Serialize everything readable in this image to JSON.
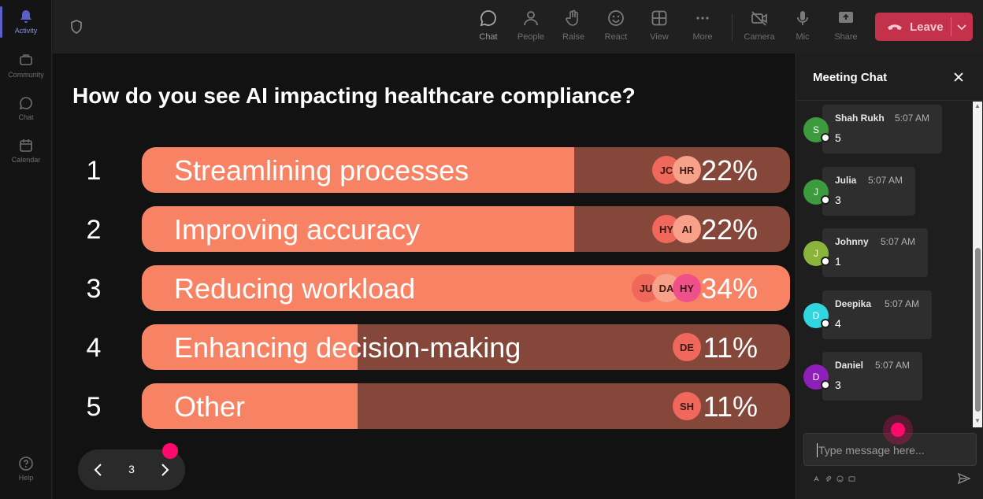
{
  "rail": {
    "items": [
      {
        "label": "Activity",
        "icon": "bell-icon",
        "active": true
      },
      {
        "label": "Community",
        "icon": "community-icon"
      },
      {
        "label": "Chat",
        "icon": "chat-bubble-icon"
      },
      {
        "label": "Calendar",
        "icon": "calendar-icon"
      },
      {
        "label": "Help",
        "icon": "help-icon"
      }
    ]
  },
  "topbar": {
    "buttons": [
      {
        "label": "Chat",
        "icon": "chat-icon",
        "active": true
      },
      {
        "label": "People",
        "icon": "people-icon"
      },
      {
        "label": "Raise",
        "icon": "raise-hand-icon"
      },
      {
        "label": "React",
        "icon": "react-smiley-icon"
      },
      {
        "label": "View",
        "icon": "view-grid-icon"
      },
      {
        "label": "More",
        "icon": "more-dots-icon"
      },
      {
        "label": "Camera",
        "icon": "camera-off-icon"
      },
      {
        "label": "Mic",
        "icon": "mic-icon"
      },
      {
        "label": "Share",
        "icon": "share-icon"
      }
    ],
    "leave_label": "Leave"
  },
  "poll": {
    "question": "How do you see AI impacting healthcare compliance?",
    "options": [
      {
        "num": "1",
        "label": "Streamlining processes",
        "percent_label": "22%",
        "fraction": 0.22,
        "voters": [
          {
            "initials": "JC",
            "color": "#f0675c"
          },
          {
            "initials": "HR",
            "color": "#f7a08a"
          }
        ]
      },
      {
        "num": "2",
        "label": "Improving accuracy",
        "percent_label": "22%",
        "fraction": 0.22,
        "voters": [
          {
            "initials": "HY",
            "color": "#f0675c"
          },
          {
            "initials": "AI",
            "color": "#f7a08a"
          }
        ]
      },
      {
        "num": "3",
        "label": "Reducing workload",
        "percent_label": "34%",
        "fraction": 0.34,
        "voters": [
          {
            "initials": "JU",
            "color": "#f0675c"
          },
          {
            "initials": "DA",
            "color": "#f7a08a"
          },
          {
            "initials": "HY",
            "color": "#f0508a"
          }
        ]
      },
      {
        "num": "4",
        "label": "Enhancing decision-making",
        "percent_label": "11%",
        "fraction": 0.11,
        "voters": [
          {
            "initials": "DE",
            "color": "#f0675c"
          }
        ]
      },
      {
        "num": "5",
        "label": "Other",
        "percent_label": "11%",
        "fraction": 0.11,
        "voters": [
          {
            "initials": "SH",
            "color": "#f0675c"
          }
        ]
      }
    ],
    "colors": {
      "fill": "#f88364",
      "track": "#85473a"
    },
    "page": "3"
  },
  "chat": {
    "title": "Meeting Chat",
    "messages": [
      {
        "name": "Shah Rukh",
        "initial": "S",
        "time": "5:07 AM",
        "text": "5",
        "avatar_color": "#3d9b3d"
      },
      {
        "name": "Julia",
        "initial": "J",
        "time": "5:07 AM",
        "text": "3",
        "avatar_color": "#3d9b3d"
      },
      {
        "name": "Johnny",
        "initial": "J",
        "time": "5:07 AM",
        "text": "1",
        "avatar_color": "#8bb33a"
      },
      {
        "name": "Deepika",
        "initial": "D",
        "time": "5:07 AM",
        "text": "4",
        "avatar_color": "#2fd6e0"
      },
      {
        "name": "Daniel",
        "initial": "D",
        "time": "5:07 AM",
        "text": "3",
        "avatar_color": "#8e1fb8"
      }
    ],
    "input_placeholder": "Type message here..."
  }
}
